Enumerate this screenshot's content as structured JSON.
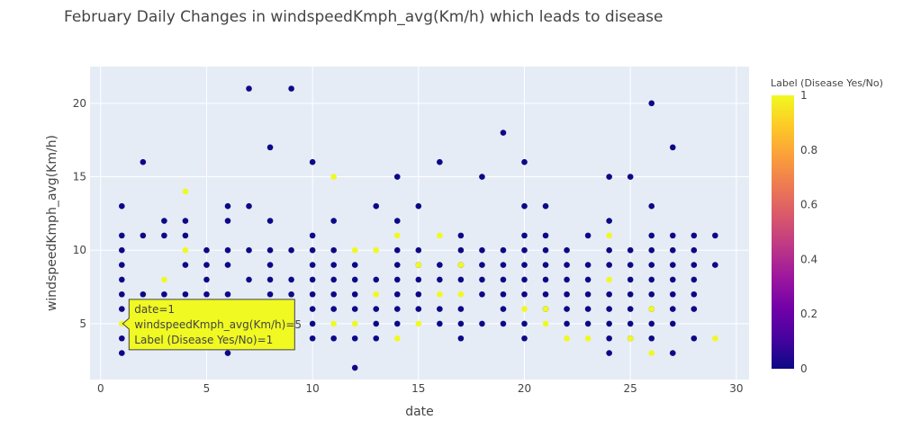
{
  "chart_data": {
    "type": "scatter",
    "title": "February Daily Changes in windspeedKmph_avg(Km/h) which leads to disease",
    "xlabel": "date",
    "ylabel": "windspeedKmph_avg(Km/h)",
    "xlim": [
      -0.5,
      30.6
    ],
    "ylim": [
      1.2,
      22.5
    ],
    "xticks": [
      0,
      5,
      10,
      15,
      20,
      25,
      30
    ],
    "yticks": [
      5,
      10,
      15,
      20
    ],
    "grid": true,
    "colorbar": {
      "title": "Label (Disease Yes/No)",
      "range": [
        0,
        1
      ],
      "ticks": [
        0,
        0.2,
        0.4,
        0.6,
        0.8,
        1
      ],
      "tick_labels": [
        "0",
        "0.2",
        "0.4",
        "0.6",
        "0.8",
        "1"
      ],
      "colorscale": [
        "#0d0887",
        "#46039f",
        "#7201a8",
        "#9c179e",
        "#bd3786",
        "#d8576b",
        "#ed7953",
        "#fb9f3a",
        "#fdca26",
        "#f0f921"
      ]
    },
    "label0_points": [
      [
        1,
        13
      ],
      [
        1,
        11
      ],
      [
        1,
        10
      ],
      [
        1,
        9
      ],
      [
        1,
        8
      ],
      [
        1,
        7
      ],
      [
        1,
        6
      ],
      [
        1,
        4
      ],
      [
        1,
        3
      ],
      [
        2,
        16
      ],
      [
        2,
        11
      ],
      [
        2,
        7
      ],
      [
        3,
        12
      ],
      [
        3,
        11
      ],
      [
        3,
        7
      ],
      [
        4,
        12
      ],
      [
        4,
        11
      ],
      [
        4,
        9
      ],
      [
        4,
        7
      ],
      [
        5,
        10
      ],
      [
        5,
        9
      ],
      [
        5,
        8
      ],
      [
        5,
        7
      ],
      [
        5,
        5
      ],
      [
        6,
        13
      ],
      [
        6,
        12
      ],
      [
        6,
        10
      ],
      [
        6,
        9
      ],
      [
        6,
        7
      ],
      [
        6,
        3
      ],
      [
        7,
        21
      ],
      [
        7,
        13
      ],
      [
        7,
        10
      ],
      [
        7,
        8
      ],
      [
        7,
        6
      ],
      [
        7,
        5
      ],
      [
        8,
        17
      ],
      [
        8,
        12
      ],
      [
        8,
        10
      ],
      [
        8,
        9
      ],
      [
        8,
        8
      ],
      [
        8,
        7
      ],
      [
        8,
        6
      ],
      [
        8,
        5
      ],
      [
        9,
        21
      ],
      [
        9,
        10
      ],
      [
        9,
        8
      ],
      [
        9,
        7
      ],
      [
        9,
        5
      ],
      [
        10,
        16
      ],
      [
        10,
        11
      ],
      [
        10,
        10
      ],
      [
        10,
        9
      ],
      [
        10,
        8
      ],
      [
        10,
        7
      ],
      [
        10,
        6
      ],
      [
        10,
        5
      ],
      [
        10,
        4
      ],
      [
        11,
        12
      ],
      [
        11,
        10
      ],
      [
        11,
        9
      ],
      [
        11,
        8
      ],
      [
        11,
        7
      ],
      [
        11,
        6
      ],
      [
        11,
        4
      ],
      [
        12,
        9
      ],
      [
        12,
        8
      ],
      [
        12,
        7
      ],
      [
        12,
        6
      ],
      [
        12,
        4
      ],
      [
        12,
        2
      ],
      [
        13,
        13
      ],
      [
        13,
        8
      ],
      [
        13,
        6
      ],
      [
        13,
        5
      ],
      [
        13,
        4
      ],
      [
        14,
        15
      ],
      [
        14,
        12
      ],
      [
        14,
        10
      ],
      [
        14,
        9
      ],
      [
        14,
        8
      ],
      [
        14,
        7
      ],
      [
        14,
        6
      ],
      [
        14,
        5
      ],
      [
        15,
        13
      ],
      [
        15,
        10
      ],
      [
        15,
        9
      ],
      [
        15,
        8
      ],
      [
        15,
        7
      ],
      [
        15,
        6
      ],
      [
        16,
        16
      ],
      [
        16,
        9
      ],
      [
        16,
        8
      ],
      [
        16,
        6
      ],
      [
        16,
        5
      ],
      [
        17,
        11
      ],
      [
        17,
        10
      ],
      [
        17,
        9
      ],
      [
        17,
        8
      ],
      [
        17,
        6
      ],
      [
        17,
        5
      ],
      [
        17,
        4
      ],
      [
        18,
        15
      ],
      [
        18,
        10
      ],
      [
        18,
        9
      ],
      [
        18,
        8
      ],
      [
        18,
        7
      ],
      [
        18,
        5
      ],
      [
        19,
        18
      ],
      [
        19,
        10
      ],
      [
        19,
        9
      ],
      [
        19,
        8
      ],
      [
        19,
        7
      ],
      [
        19,
        6
      ],
      [
        19,
        5
      ],
      [
        20,
        16
      ],
      [
        20,
        13
      ],
      [
        20,
        11
      ],
      [
        20,
        10
      ],
      [
        20,
        9
      ],
      [
        20,
        8
      ],
      [
        20,
        7
      ],
      [
        20,
        5
      ],
      [
        20,
        4
      ],
      [
        21,
        13
      ],
      [
        21,
        11
      ],
      [
        21,
        10
      ],
      [
        21,
        9
      ],
      [
        21,
        8
      ],
      [
        21,
        7
      ],
      [
        21,
        6
      ],
      [
        22,
        10
      ],
      [
        22,
        9
      ],
      [
        22,
        8
      ],
      [
        22,
        7
      ],
      [
        22,
        6
      ],
      [
        22,
        5
      ],
      [
        23,
        11
      ],
      [
        23,
        9
      ],
      [
        23,
        8
      ],
      [
        23,
        7
      ],
      [
        23,
        6
      ],
      [
        23,
        5
      ],
      [
        24,
        15
      ],
      [
        24,
        12
      ],
      [
        24,
        10
      ],
      [
        24,
        9
      ],
      [
        24,
        7
      ],
      [
        24,
        6
      ],
      [
        24,
        5
      ],
      [
        24,
        4
      ],
      [
        24,
        3
      ],
      [
        25,
        15
      ],
      [
        25,
        10
      ],
      [
        25,
        9
      ],
      [
        25,
        8
      ],
      [
        25,
        7
      ],
      [
        25,
        6
      ],
      [
        25,
        5
      ],
      [
        25,
        4
      ],
      [
        26,
        20
      ],
      [
        26,
        13
      ],
      [
        26,
        11
      ],
      [
        26,
        10
      ],
      [
        26,
        9
      ],
      [
        26,
        8
      ],
      [
        26,
        7
      ],
      [
        26,
        6
      ],
      [
        26,
        5
      ],
      [
        26,
        4
      ],
      [
        27,
        17
      ],
      [
        27,
        11
      ],
      [
        27,
        10
      ],
      [
        27,
        9
      ],
      [
        27,
        8
      ],
      [
        27,
        7
      ],
      [
        27,
        6
      ],
      [
        27,
        5
      ],
      [
        27,
        3
      ],
      [
        28,
        11
      ],
      [
        28,
        10
      ],
      [
        28,
        9
      ],
      [
        28,
        8
      ],
      [
        28,
        7
      ],
      [
        28,
        6
      ],
      [
        28,
        4
      ],
      [
        29,
        11
      ],
      [
        29,
        9
      ]
    ],
    "label1_points": [
      [
        1,
        5
      ],
      [
        3,
        8
      ],
      [
        4,
        14
      ],
      [
        4,
        10
      ],
      [
        11,
        15
      ],
      [
        11,
        5
      ],
      [
        12,
        10
      ],
      [
        12,
        5
      ],
      [
        13,
        10
      ],
      [
        13,
        7
      ],
      [
        14,
        11
      ],
      [
        14,
        4
      ],
      [
        15,
        9
      ],
      [
        15,
        5
      ],
      [
        16,
        11
      ],
      [
        16,
        7
      ],
      [
        17,
        9
      ],
      [
        17,
        7
      ],
      [
        20,
        6
      ],
      [
        21,
        6
      ],
      [
        21,
        5
      ],
      [
        22,
        4
      ],
      [
        23,
        4
      ],
      [
        24,
        11
      ],
      [
        24,
        8
      ],
      [
        25,
        4
      ],
      [
        26,
        6
      ],
      [
        26,
        3
      ],
      [
        29,
        4
      ]
    ],
    "tooltip": {
      "lines": [
        "date=1",
        "windspeedKmph_avg(Km/h)=5",
        "Label (Disease Yes/No)=1"
      ],
      "point": [
        1,
        5
      ]
    }
  }
}
